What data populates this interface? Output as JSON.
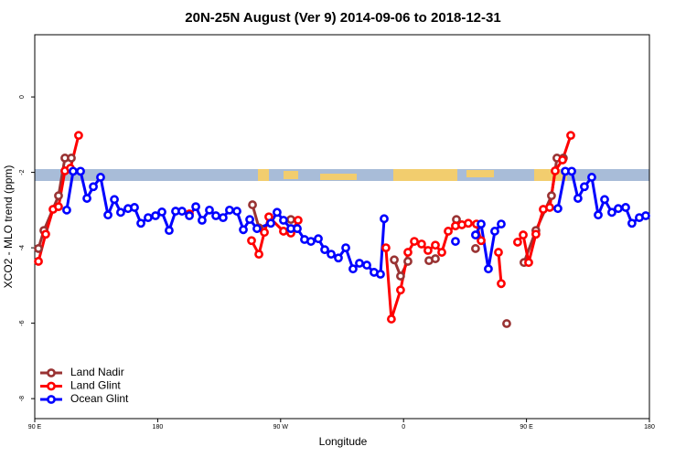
{
  "chart_data": {
    "type": "line",
    "title": "20N-25N August (Ver 9)   2014-09-06 to 2018-12-31",
    "xlabel": "Longitude",
    "ylabel": "XCO2 - MLO trend (ppm)",
    "xlim": [
      90,
      540
    ],
    "ylim": [
      -8.53,
      1.65
    ],
    "xticks": [
      {
        "value": 90,
        "label": "90 E"
      },
      {
        "value": 180,
        "label": "180"
      },
      {
        "value": 270,
        "label": "90 W"
      },
      {
        "value": 360,
        "label": "0"
      },
      {
        "value": 450,
        "label": "90 E"
      },
      {
        "value": 540,
        "label": "180"
      }
    ],
    "yticks": [
      -8,
      -6,
      -4,
      -2,
      0
    ],
    "legend": "bottom-left",
    "series": [
      {
        "name": "Land Nadir",
        "color": "#993333",
        "x": [
          92.7,
          96.7,
          107.4,
          112.1,
          116.8,
          null,
          249.4,
          254.1,
          null,
          277.5,
          null,
          353.2,
          357.8,
          363.2,
          null,
          378.6,
          383.3,
          null,
          398.7,
          null,
          412.7,
          null,
          435.5,
          null,
          448.2,
          456.9,
          468.3,
          472.3,
          477.0
        ],
        "values": [
          -4.02,
          -3.54,
          -2.62,
          -1.62,
          -1.62,
          null,
          -2.86,
          -3.47,
          null,
          -3.25,
          null,
          -4.32,
          -4.75,
          -4.36,
          null,
          -4.34,
          -4.29,
          null,
          -3.25,
          null,
          -4.02,
          null,
          -6.01,
          null,
          -4.39,
          -3.54,
          -2.62,
          -1.62,
          -1.62
        ]
      },
      {
        "name": "Land Glint",
        "color": "#ff0000",
        "x": [
          92.7,
          98.0,
          103.4,
          107.4,
          112.1,
          116.1,
          122.1,
          null,
          203.2,
          null,
          248.7,
          254.1,
          258.1,
          261.4,
          272.1,
          277.5,
          282.8,
          null,
          347.1,
          351.1,
          357.8,
          363.2,
          367.9,
          373.2,
          377.9,
          383.3,
          388.0,
          392.7,
          398.0,
          402.7,
          407.4,
          413.4,
          416.8,
          null,
          429.5,
          431.5,
          null,
          443.5,
          447.6,
          451.6,
          456.9,
          462.3,
          467.0,
          471.0,
          476.4,
          482.4
        ],
        "values": [
          -4.36,
          -3.64,
          -2.98,
          -2.91,
          -1.96,
          -1.89,
          -1.02,
          null,
          -3.1,
          null,
          -3.81,
          -4.17,
          -3.59,
          -3.18,
          -3.56,
          -3.61,
          -3.27,
          null,
          -4.0,
          -5.89,
          -5.12,
          -4.12,
          -3.83,
          -3.9,
          -4.07,
          -3.93,
          -4.12,
          -3.56,
          -3.42,
          -3.39,
          -3.35,
          -3.37,
          -3.81,
          null,
          -4.12,
          -4.95,
          null,
          -3.85,
          -3.66,
          -4.39,
          -3.64,
          -2.98,
          -2.93,
          -1.96,
          -1.67,
          -1.02
        ]
      },
      {
        "name": "Ocean Glint",
        "color": "#0000ff",
        "x": [
          113.4,
          118.1,
          123.5,
          128.2,
          132.9,
          138.2,
          143.6,
          148.3,
          152.9,
          158.3,
          163.0,
          167.7,
          173.0,
          178.4,
          183.1,
          188.4,
          193.1,
          197.8,
          203.2,
          207.9,
          212.5,
          217.9,
          222.6,
          227.9,
          232.6,
          238.0,
          242.7,
          247.4,
          252.7,
          262.8,
          267.4,
          272.1,
          277.5,
          282.2,
          287.5,
          292.2,
          297.6,
          302.3,
          307.0,
          312.3,
          317.7,
          323.0,
          327.7,
          333.1,
          338.4,
          343.1,
          345.8,
          null,
          398.0,
          null,
          412.7,
          416.8,
          422.1,
          426.8,
          431.5,
          null,
          473.0,
          478.4,
          483.1,
          487.7,
          492.4,
          497.8,
          502.5,
          507.2,
          512.5,
          517.2,
          522.6,
          527.2,
          532.6,
          537.3
        ],
        "values": [
          -3.0,
          -1.97,
          -1.97,
          -2.69,
          -2.38,
          -2.13,
          -3.13,
          -2.72,
          -3.06,
          -2.96,
          -2.93,
          -3.35,
          -3.2,
          -3.15,
          -3.05,
          -3.54,
          -3.03,
          -3.03,
          -3.15,
          -2.91,
          -3.27,
          -3.0,
          -3.15,
          -3.2,
          -3.0,
          -3.03,
          -3.52,
          -3.25,
          -3.49,
          -3.35,
          -3.06,
          -3.27,
          -3.49,
          -3.49,
          -3.78,
          -3.83,
          -3.76,
          -4.05,
          -4.17,
          -4.27,
          -4.0,
          -4.56,
          -4.41,
          -4.46,
          -4.65,
          -4.7,
          -3.23,
          null,
          -3.83,
          null,
          -3.66,
          -3.37,
          -4.56,
          -3.56,
          -3.37,
          null,
          -2.96,
          -1.97,
          -1.97,
          -2.69,
          -2.38,
          -2.13,
          -3.13,
          -2.72,
          -3.06,
          -2.96,
          -2.93,
          -3.35,
          -3.2,
          -3.15
        ]
      }
    ]
  }
}
